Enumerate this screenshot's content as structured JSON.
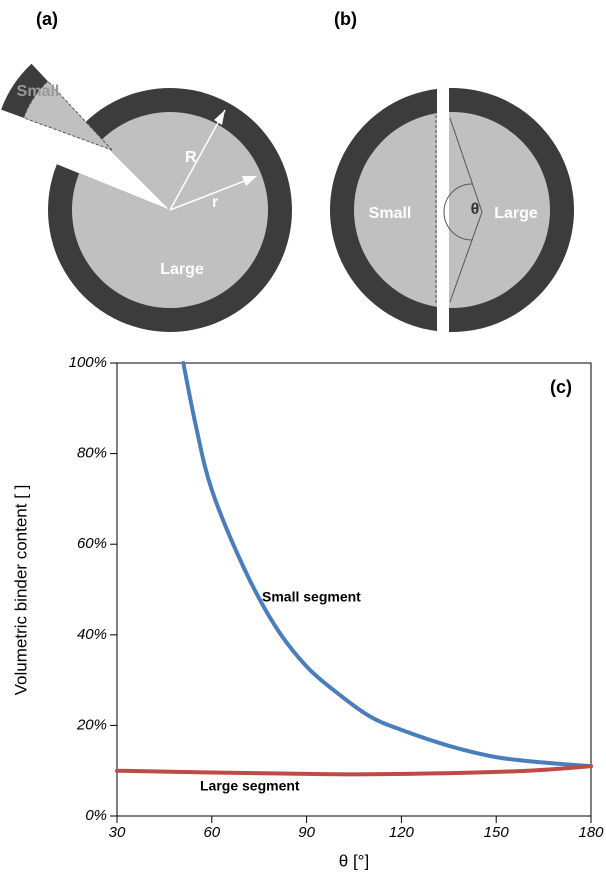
{
  "diagrams": {
    "a": {
      "label": "(a)",
      "small": "Small",
      "large": "Large",
      "outer_radius": "R",
      "inner_radius": "r"
    },
    "b": {
      "label": "(b)",
      "small": "Small",
      "large": "Large",
      "angle": "θ"
    }
  },
  "chart_data": {
    "type": "line",
    "panel_label": "(c)",
    "x_label": "θ [°]",
    "y_label": "Volumetric binder content [ ]",
    "xlim": [
      30,
      180
    ],
    "xticks": [
      30,
      60,
      90,
      120,
      150,
      180
    ],
    "ylim": [
      0,
      100
    ],
    "yticks": [
      {
        "value": 0,
        "label": "0%"
      },
      {
        "value": 20,
        "label": "20%"
      },
      {
        "value": 40,
        "label": "40%"
      },
      {
        "value": 60,
        "label": "60%"
      },
      {
        "value": 80,
        "label": "80%"
      },
      {
        "value": 100,
        "label": "100%"
      }
    ],
    "annotations": [
      "Small segment",
      "Large segment"
    ],
    "series": [
      {
        "name": "Small segment",
        "color": "#4a7ebb",
        "x": [
          51,
          55,
          60,
          70,
          80,
          90,
          100,
          110,
          120,
          135,
          150,
          165,
          180
        ],
        "values": [
          100,
          86,
          72,
          55,
          42,
          33,
          27,
          22,
          19,
          15.5,
          13,
          11.8,
          11
        ]
      },
      {
        "name": "Large segment",
        "color": "#be4b48",
        "x": [
          30,
          60,
          90,
          105,
          130,
          160,
          180
        ],
        "values": [
          10,
          9.6,
          9.3,
          9.2,
          9.4,
          10,
          11
        ]
      }
    ]
  }
}
